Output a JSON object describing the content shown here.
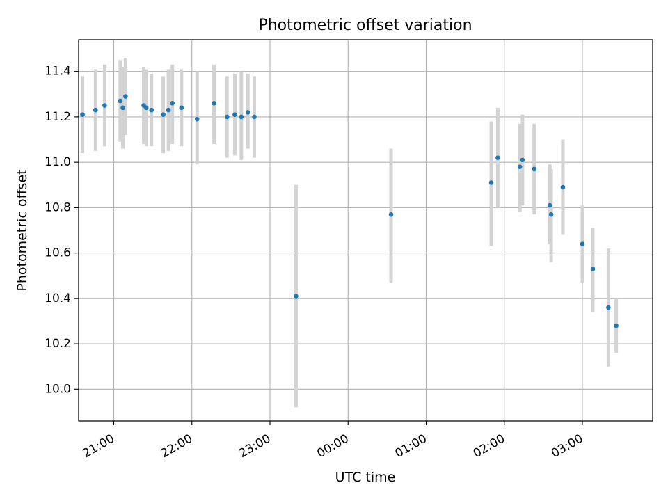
{
  "colors": {
    "marker": "#1f77b4",
    "errorbar": "#d3d3d3",
    "grid": "#b0b0b0",
    "axis": "#000000"
  },
  "chart_data": {
    "type": "scatter",
    "title": "Photometric offset variation",
    "xlabel": "UTC time",
    "ylabel": "Photometric offset",
    "x_unit": "UTC time (HH:MM, night spanning midnight)",
    "xlim": [
      "20:33",
      "03:54"
    ],
    "ylim": [
      9.86,
      11.54
    ],
    "grid": true,
    "x_ticks": [
      "21:00",
      "22:00",
      "23:00",
      "00:00",
      "01:00",
      "02:00",
      "03:00"
    ],
    "y_ticks": [
      "10.0",
      "10.2",
      "10.4",
      "10.6",
      "10.8",
      "11.0",
      "11.2",
      "11.4"
    ],
    "series": [
      {
        "error_bars": true,
        "points": [
          {
            "x": "20:36",
            "y": 11.21,
            "ylow": 11.04,
            "yhigh": 11.38
          },
          {
            "x": "20:46",
            "y": 11.23,
            "ylow": 11.05,
            "yhigh": 11.41
          },
          {
            "x": "20:53",
            "y": 11.25,
            "ylow": 11.07,
            "yhigh": 11.43
          },
          {
            "x": "21:05",
            "y": 11.27,
            "ylow": 11.09,
            "yhigh": 11.45
          },
          {
            "x": "21:07",
            "y": 11.24,
            "ylow": 11.06,
            "yhigh": 11.42
          },
          {
            "x": "21:09",
            "y": 11.29,
            "ylow": 11.12,
            "yhigh": 11.46
          },
          {
            "x": "21:23",
            "y": 11.25,
            "ylow": 11.08,
            "yhigh": 11.42
          },
          {
            "x": "21:25",
            "y": 11.24,
            "ylow": 11.07,
            "yhigh": 11.41
          },
          {
            "x": "21:29",
            "y": 11.23,
            "ylow": 11.07,
            "yhigh": 11.39
          },
          {
            "x": "21:38",
            "y": 11.21,
            "ylow": 11.04,
            "yhigh": 11.38
          },
          {
            "x": "21:42",
            "y": 11.23,
            "ylow": 11.05,
            "yhigh": 11.41
          },
          {
            "x": "21:45",
            "y": 11.26,
            "ylow": 11.08,
            "yhigh": 11.43
          },
          {
            "x": "21:52",
            "y": 11.24,
            "ylow": 11.07,
            "yhigh": 11.41
          },
          {
            "x": "22:04",
            "y": 11.19,
            "ylow": 10.99,
            "yhigh": 11.4
          },
          {
            "x": "22:17",
            "y": 11.26,
            "ylow": 11.08,
            "yhigh": 11.43
          },
          {
            "x": "22:27",
            "y": 11.2,
            "ylow": 11.02,
            "yhigh": 11.38
          },
          {
            "x": "22:33",
            "y": 11.21,
            "ylow": 11.03,
            "yhigh": 11.39
          },
          {
            "x": "22:38",
            "y": 11.2,
            "ylow": 11.01,
            "yhigh": 11.4
          },
          {
            "x": "22:43",
            "y": 11.22,
            "ylow": 11.06,
            "yhigh": 11.39
          },
          {
            "x": "22:48",
            "y": 11.2,
            "ylow": 11.02,
            "yhigh": 11.38
          },
          {
            "x": "23:20",
            "y": 10.41,
            "ylow": 9.92,
            "yhigh": 10.9
          },
          {
            "x": "00:33",
            "y": 10.77,
            "ylow": 10.47,
            "yhigh": 11.06
          },
          {
            "x": "01:50",
            "y": 10.91,
            "ylow": 10.63,
            "yhigh": 11.18
          },
          {
            "x": "01:55",
            "y": 11.02,
            "ylow": 10.8,
            "yhigh": 11.24
          },
          {
            "x": "02:12",
            "y": 10.98,
            "ylow": 10.78,
            "yhigh": 11.17
          },
          {
            "x": "02:14",
            "y": 11.01,
            "ylow": 10.81,
            "yhigh": 11.21
          },
          {
            "x": "02:23",
            "y": 10.97,
            "ylow": 10.77,
            "yhigh": 11.17
          },
          {
            "x": "02:35",
            "y": 10.81,
            "ylow": 10.64,
            "yhigh": 10.99
          },
          {
            "x": "02:36",
            "y": 10.77,
            "ylow": 10.56,
            "yhigh": 10.97
          },
          {
            "x": "02:45",
            "y": 10.89,
            "ylow": 10.68,
            "yhigh": 11.1
          },
          {
            "x": "03:00",
            "y": 10.64,
            "ylow": 10.47,
            "yhigh": 10.81
          },
          {
            "x": "03:08",
            "y": 10.53,
            "ylow": 10.34,
            "yhigh": 10.71
          },
          {
            "x": "03:20",
            "y": 10.36,
            "ylow": 10.1,
            "yhigh": 10.62
          },
          {
            "x": "03:26",
            "y": 10.28,
            "ylow": 10.16,
            "yhigh": 10.4
          }
        ]
      }
    ]
  }
}
